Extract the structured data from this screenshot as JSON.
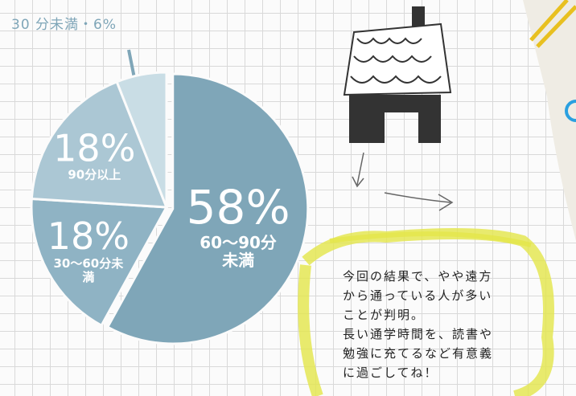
{
  "chart_data": {
    "type": "pie",
    "categories": [
      "60～90分未満",
      "30～60分未満",
      "90分以上",
      null
    ],
    "values": [
      58,
      18,
      18,
      6
    ],
    "value_labels": [
      "58%",
      "18%",
      "18%",
      null
    ],
    "colors": [
      "#7fa6b8",
      "#8fb3c4",
      "#abc7d4",
      "#c9dde5"
    ],
    "annotation": "30 分未満・6%",
    "note": [
      "今回の結果で、やや遠方",
      "から通っている人が多い",
      "ことが判明。",
      "長い通学時間を、読書や",
      "勉強に充てるなど有意義",
      "に過ごしてね！"
    ]
  }
}
